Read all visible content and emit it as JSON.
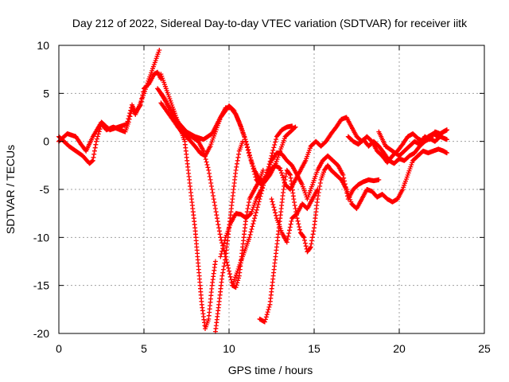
{
  "chart_data": {
    "type": "scatter",
    "title": "Day 212 of 2022, Sidereal Day-to-day VTEC variation (SDTVAR) for receiver iitk",
    "xlabel": "GPS time / hours",
    "ylabel": "SDTVAR / TECUs",
    "xlim": [
      0,
      25
    ],
    "ylim": [
      -20,
      10
    ],
    "xticks": [
      0,
      5,
      10,
      15,
      20,
      25
    ],
    "yticks": [
      -20,
      -15,
      -10,
      -5,
      0,
      5,
      10
    ],
    "grid": true,
    "marker": "plus",
    "color": "#ff0000",
    "series": [
      {
        "points": [
          [
            0,
            0.5
          ],
          [
            0.3,
            0
          ],
          [
            0.6,
            -0.5
          ],
          [
            1,
            -1
          ],
          [
            1.4,
            -1.5
          ],
          [
            1.8,
            -2.3
          ],
          [
            2,
            -2
          ],
          [
            2.2,
            0
          ],
          [
            2.5,
            1.8
          ],
          [
            2.8,
            1.2
          ],
          [
            3.2,
            1.5
          ],
          [
            3.6,
            1.2
          ],
          [
            3.9,
            1
          ],
          [
            4.1,
            2
          ],
          [
            4.3,
            3.5
          ],
          [
            4.5,
            2.8
          ],
          [
            4.8,
            4
          ],
          [
            5,
            5
          ],
          [
            5.3,
            6.5
          ],
          [
            5.6,
            8
          ],
          [
            5.9,
            9.5
          ]
        ]
      },
      {
        "points": [
          [
            0,
            0
          ],
          [
            0.5,
            0.8
          ],
          [
            1,
            0.5
          ],
          [
            1.3,
            -0.3
          ],
          [
            1.6,
            -1
          ],
          [
            2,
            0.5
          ],
          [
            2.5,
            2
          ],
          [
            3,
            1.2
          ],
          [
            3.5,
            1.5
          ],
          [
            4,
            1.8
          ],
          [
            4.3,
            3.8
          ],
          [
            4.5,
            3
          ],
          [
            4.8,
            3.8
          ],
          [
            5,
            5.5
          ],
          [
            5.3,
            6
          ],
          [
            5.6,
            7
          ],
          [
            5.8,
            7.2
          ],
          [
            6,
            6.5
          ]
        ]
      },
      {
        "points": [
          [
            6,
            7
          ],
          [
            6.3,
            5.5
          ],
          [
            6.6,
            4
          ],
          [
            6.9,
            2.5
          ],
          [
            7.2,
            1
          ],
          [
            7.4,
            0
          ],
          [
            7.6,
            -3
          ],
          [
            7.8,
            -6
          ],
          [
            8,
            -9
          ],
          [
            8.2,
            -13
          ],
          [
            8.4,
            -17
          ],
          [
            8.6,
            -19.5
          ],
          [
            8.8,
            -18.5
          ],
          [
            9,
            -15
          ],
          [
            9.2,
            -12.5
          ]
        ]
      },
      {
        "points": [
          [
            5.8,
            5.5
          ],
          [
            6.2,
            4.5
          ],
          [
            6.6,
            3
          ],
          [
            7,
            1.5
          ],
          [
            7.4,
            0.8
          ],
          [
            7.8,
            0.5
          ],
          [
            8.2,
            0
          ],
          [
            8.5,
            -1
          ],
          [
            8.8,
            -3
          ],
          [
            9,
            -5
          ],
          [
            9.2,
            -7
          ],
          [
            9.5,
            -10
          ],
          [
            9.8,
            -12
          ],
          [
            10,
            -13.5
          ],
          [
            10.2,
            -15
          ],
          [
            10.4,
            -15.2
          ],
          [
            10.6,
            -14
          ],
          [
            10.8,
            -11
          ],
          [
            11,
            -8
          ],
          [
            11.2,
            -6
          ],
          [
            11.5,
            -5
          ],
          [
            11.8,
            -4
          ],
          [
            12,
            -3
          ]
        ]
      },
      {
        "points": [
          [
            6,
            4
          ],
          [
            6.4,
            3
          ],
          [
            6.8,
            2
          ],
          [
            7.2,
            1
          ],
          [
            7.6,
            0.3
          ],
          [
            8,
            -0.5
          ],
          [
            8.3,
            -1.2
          ],
          [
            8.6,
            -1.5
          ],
          [
            8.9,
            -0.5
          ],
          [
            9.2,
            1
          ],
          [
            9.5,
            2.5
          ],
          [
            9.8,
            3.5
          ],
          [
            10.1,
            3.5
          ],
          [
            10.4,
            2.8
          ],
          [
            10.7,
            1.5
          ],
          [
            11,
            0
          ],
          [
            11.3,
            -2
          ],
          [
            11.6,
            -4
          ],
          [
            11.9,
            -4.5
          ],
          [
            12.2,
            -3.5
          ],
          [
            12.5,
            -1.5
          ],
          [
            12.8,
            0.5
          ],
          [
            13.1,
            1.2
          ],
          [
            13.4,
            1.5
          ],
          [
            13.7,
            1.6
          ]
        ]
      },
      {
        "points": [
          [
            6,
            5
          ],
          [
            6.5,
            3.5
          ],
          [
            7,
            2
          ],
          [
            7.5,
            1
          ],
          [
            8,
            0.5
          ],
          [
            8.5,
            0.2
          ],
          [
            9,
            0.8
          ],
          [
            9.5,
            2.5
          ],
          [
            10,
            3.7
          ],
          [
            10.3,
            3.2
          ],
          [
            10.6,
            2
          ],
          [
            10.9,
            0.5
          ],
          [
            11.2,
            -1.5
          ],
          [
            11.5,
            -3
          ],
          [
            11.8,
            -4
          ],
          [
            12.1,
            -4.2
          ],
          [
            12.4,
            -3.5
          ],
          [
            12.7,
            -2.5
          ],
          [
            13,
            -1
          ],
          [
            13.3,
            0.5
          ],
          [
            13.6,
            1
          ],
          [
            13.9,
            1.5
          ]
        ]
      },
      {
        "points": [
          [
            9.2,
            -19.8
          ],
          [
            9.4,
            -17
          ],
          [
            9.6,
            -14
          ],
          [
            9.8,
            -12
          ],
          [
            10,
            -9
          ],
          [
            10.2,
            -6
          ],
          [
            10.4,
            -3
          ],
          [
            10.6,
            -1
          ],
          [
            10.8,
            0
          ]
        ]
      },
      {
        "points": [
          [
            9.5,
            -12
          ],
          [
            9.8,
            -10
          ],
          [
            10.1,
            -8.5
          ],
          [
            10.4,
            -7.5
          ],
          [
            10.7,
            -7.6
          ],
          [
            11,
            -8
          ],
          [
            11.3,
            -7.5
          ],
          [
            11.6,
            -6
          ],
          [
            11.9,
            -5
          ],
          [
            12.2,
            -3.5
          ],
          [
            12.5,
            -2
          ],
          [
            12.8,
            -1.2
          ],
          [
            13.1,
            -1.3
          ],
          [
            13.4,
            -2
          ],
          [
            13.7,
            -2.5
          ],
          [
            14,
            -3.5
          ],
          [
            14.3,
            -4.5
          ],
          [
            14.6,
            -6
          ],
          [
            14.9,
            -4.5
          ],
          [
            15.2,
            -3
          ],
          [
            15.5,
            -2
          ],
          [
            15.8,
            -1.5
          ],
          [
            16.1,
            -2
          ],
          [
            16.4,
            -2.5
          ],
          [
            16.7,
            -3.5
          ],
          [
            17,
            -6
          ],
          [
            17.3,
            -5
          ],
          [
            17.6,
            -4.5
          ],
          [
            17.9,
            -4.2
          ],
          [
            18.2,
            -4
          ],
          [
            18.5,
            -4.1
          ],
          [
            18.8,
            -4
          ]
        ]
      },
      {
        "points": [
          [
            11.8,
            -18.5
          ],
          [
            12.1,
            -18.8
          ],
          [
            12.4,
            -17
          ],
          [
            12.6,
            -14
          ],
          [
            12.8,
            -11
          ],
          [
            13,
            -8
          ],
          [
            13.2,
            -5
          ],
          [
            13.4,
            -3
          ],
          [
            13.6,
            -3.5
          ],
          [
            13.8,
            -6
          ],
          [
            14,
            -8
          ],
          [
            14.2,
            -9.5
          ],
          [
            14.4,
            -10
          ],
          [
            14.6,
            -11.5
          ],
          [
            14.8,
            -11
          ],
          [
            15,
            -9
          ],
          [
            15.2,
            -6
          ],
          [
            15.4,
            -4
          ],
          [
            15.6,
            -3
          ],
          [
            15.8,
            -2.5
          ],
          [
            16,
            -3
          ]
        ]
      },
      {
        "points": [
          [
            10.2,
            -15
          ],
          [
            10.5,
            -13.5
          ],
          [
            10.8,
            -12
          ],
          [
            11,
            -11
          ],
          [
            11.2,
            -10
          ],
          [
            11.5,
            -8
          ],
          [
            11.8,
            -6
          ],
          [
            12.1,
            -4
          ],
          [
            12.4,
            -3
          ],
          [
            12.7,
            -2.5
          ],
          [
            13,
            -2.8
          ],
          [
            13.3,
            -4.5
          ],
          [
            13.6,
            -5
          ],
          [
            13.9,
            -4
          ],
          [
            14.2,
            -3
          ],
          [
            14.5,
            -2
          ],
          [
            14.8,
            -0.5
          ],
          [
            15.1,
            0
          ],
          [
            15.4,
            -0.5
          ],
          [
            15.7,
            0
          ],
          [
            16,
            0.8
          ],
          [
            16.3,
            1.5
          ],
          [
            16.6,
            2.3
          ],
          [
            16.9,
            2.5
          ],
          [
            17.2,
            1.5
          ],
          [
            17.5,
            0.5
          ],
          [
            17.8,
            0
          ],
          [
            18.1,
            0.5
          ],
          [
            18.4,
            0
          ],
          [
            18.7,
            -1
          ],
          [
            19,
            -1.5
          ],
          [
            19.3,
            -2.2
          ],
          [
            19.6,
            -1.5
          ],
          [
            19.9,
            -1
          ],
          [
            20.2,
            -0.3
          ],
          [
            20.5,
            0.5
          ],
          [
            20.8,
            0.8
          ],
          [
            21.1,
            0.3
          ],
          [
            21.4,
            0
          ],
          [
            21.7,
            0.5
          ],
          [
            22,
            0.8
          ],
          [
            22.3,
            0.5
          ],
          [
            22.6,
            1
          ],
          [
            22.8,
            1.2
          ]
        ]
      },
      {
        "points": [
          [
            16,
            -3
          ],
          [
            16.3,
            -3.5
          ],
          [
            16.6,
            -4
          ],
          [
            16.9,
            -5
          ],
          [
            17.2,
            -6.5
          ],
          [
            17.5,
            -7
          ],
          [
            17.8,
            -6
          ],
          [
            18.1,
            -5
          ],
          [
            18.4,
            -5.2
          ],
          [
            18.7,
            -5.8
          ],
          [
            19,
            -5.5
          ],
          [
            19.3,
            -6
          ],
          [
            19.6,
            -6.3
          ],
          [
            19.9,
            -6
          ],
          [
            20.2,
            -5
          ],
          [
            20.5,
            -3.5
          ],
          [
            20.8,
            -2
          ],
          [
            21.1,
            -1.5
          ],
          [
            21.4,
            -1
          ],
          [
            21.7,
            -1.2
          ],
          [
            22,
            -1
          ],
          [
            22.3,
            -0.8
          ],
          [
            22.6,
            -1
          ],
          [
            22.8,
            -1.2
          ]
        ]
      },
      {
        "points": [
          [
            17,
            0.5
          ],
          [
            17.3,
            0
          ],
          [
            17.6,
            -0.3
          ],
          [
            17.9,
            0.2
          ],
          [
            18.2,
            -0.5
          ],
          [
            18.5,
            0
          ],
          [
            18.8,
            -0.5
          ],
          [
            19.1,
            -1.2
          ],
          [
            19.4,
            -2
          ],
          [
            19.7,
            -2.3
          ],
          [
            20,
            -1.8
          ],
          [
            20.3,
            -2
          ],
          [
            20.6,
            -1.5
          ],
          [
            20.9,
            -1.2
          ],
          [
            21.2,
            -0.5
          ],
          [
            21.5,
            0
          ],
          [
            21.8,
            0.3
          ],
          [
            22.1,
            0
          ],
          [
            22.4,
            0.5
          ],
          [
            22.8,
            0.2
          ]
        ]
      },
      {
        "points": [
          [
            18.8,
            1
          ],
          [
            19.2,
            -0.5
          ],
          [
            19.6,
            -1
          ],
          [
            20,
            -1.5
          ],
          [
            20.3,
            -1
          ],
          [
            20.6,
            -0.5
          ],
          [
            20.9,
            0
          ],
          [
            21.2,
            -0.3
          ],
          [
            21.5,
            0.5
          ],
          [
            21.8,
            0.2
          ],
          [
            22.1,
            1
          ],
          [
            22.4,
            0.8
          ],
          [
            22.8,
            1.2
          ]
        ]
      },
      {
        "points": [
          [
            12.5,
            -6
          ],
          [
            12.8,
            -8
          ],
          [
            13.1,
            -9.5
          ],
          [
            13.4,
            -10.5
          ],
          [
            13.7,
            -8
          ],
          [
            14,
            -7.5
          ],
          [
            14.3,
            -6.5
          ],
          [
            14.6,
            -7
          ],
          [
            14.9,
            -6
          ],
          [
            15.2,
            -5
          ]
        ]
      }
    ]
  }
}
